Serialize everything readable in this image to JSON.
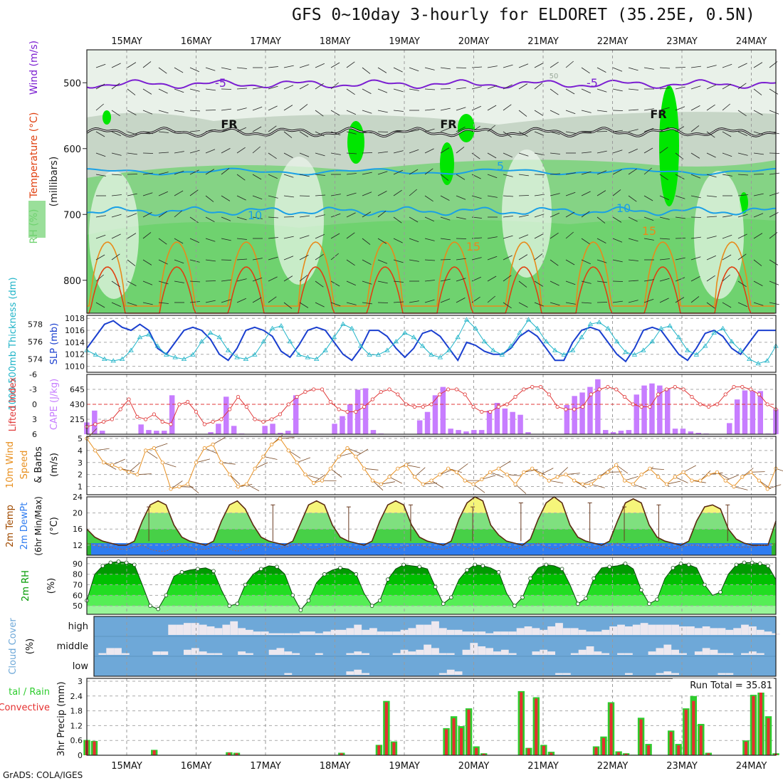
{
  "title": "GFS 0~10day 3-hourly for ELDORET (35.25E, 0.5N)",
  "credit": "GrADS: COLA/IGES",
  "colors": {
    "temp_line": "#7b1fd1",
    "freezing": "#111111",
    "cool_line": "#1aa0e6",
    "warm_line": "#e88a1a",
    "hot_line": "#e04010",
    "rh_light": "#eef6ee",
    "rh_mid": "#c7d6c7",
    "rh_green": "#6fd26f",
    "rh_bright": "#00e600",
    "slp": "#1a3fcf",
    "thickness": "#20b4c8",
    "cape": "#c77dff",
    "lifted": "#e03a3a",
    "wind": "#e89020",
    "barb": "#7a4a25",
    "temp_fill_warm": "#f5f57a",
    "temp_fill_green": "#47d047",
    "dewpt": "#2f7cf0",
    "rh_dark": "#009a00",
    "cloud_bg": "#6ea8d8",
    "cloud_bar": "#ede8ef",
    "rain": "#2ecc2e",
    "convective": "#e53030"
  },
  "chart_data": [
    {
      "panel": "upper_air",
      "type": "contour",
      "ylabel": "(millibars)",
      "legend_left": [
        "RH (%)",
        "Temperature (°C)",
        "Wind (m/s)"
      ],
      "yticks": [
        "500",
        "600",
        "700",
        "800"
      ],
      "ylim": [
        450,
        850
      ],
      "contour_labels": [
        "-5",
        "-5",
        "FR",
        "FR",
        "FR",
        "5",
        "10",
        "10",
        "15",
        "15",
        "50"
      ],
      "isotherms_mb": {
        "minus5": 502,
        "freezing": 575,
        "plus5": 635,
        "plus10": 695
      }
    },
    {
      "panel": "slp_thickness",
      "type": "line",
      "ylabel_left": "1000-500mb Thickness (dm)",
      "ylabel_right": "SLP (mb)",
      "left_ticks": [
        "578",
        "576",
        "574"
      ],
      "right_ticks": [
        "1018",
        "1016",
        "1014",
        "1012",
        "1010"
      ],
      "slp": [
        1013,
        1015,
        1017,
        1017.6,
        1016.5,
        1016,
        1017,
        1016,
        1013,
        1012,
        1014,
        1016,
        1016.5,
        1016,
        1014.5,
        1012,
        1011,
        1013,
        1016,
        1016.5,
        1016,
        1015,
        1012.5,
        1011.5,
        1013.5,
        1016,
        1016.5,
        1016,
        1014,
        1012,
        1011,
        1013,
        1016,
        1016,
        1015,
        1013,
        1011.5,
        1013,
        1015.5,
        1016,
        1015,
        1013,
        1011,
        1014,
        1013.5,
        1012.5,
        1012,
        1012,
        1013,
        1015,
        1016,
        1015,
        1013,
        1011,
        1011,
        1014,
        1016,
        1016.5,
        1016,
        1014,
        1012,
        1010.8,
        1013,
        1016,
        1016.5,
        1016,
        1014,
        1012,
        1011,
        1013,
        1015.5,
        1016,
        1015,
        1013,
        1012,
        1014,
        1016,
        1016,
        1016
      ],
      "thickness": [
        575,
        574.5,
        574,
        573.8,
        574,
        575,
        576.5,
        576.8,
        575.5,
        574.5,
        574.2,
        574,
        574.5,
        576,
        577,
        576.5,
        575,
        574.2,
        574,
        574.5,
        576,
        577.5,
        577.8,
        576,
        574.5,
        574.2,
        574,
        575,
        576.5,
        578,
        577.5,
        575.5,
        574.5,
        574.5,
        575,
        576,
        577,
        576.5,
        575.5,
        574.5,
        574.2,
        575,
        576.5,
        578.5,
        577.5,
        576,
        575,
        574.5,
        575.5,
        577,
        578.5,
        577.5,
        576,
        575,
        574.5,
        575,
        576.5,
        578,
        578.2,
        577.5,
        576,
        574.8,
        574.5,
        575,
        576,
        577.5,
        577.8,
        576.5,
        575,
        574.5,
        575.5,
        577,
        577.5,
        576,
        575,
        574,
        573.5,
        573.8,
        575.5
      ]
    },
    {
      "panel": "cape_li",
      "type": "bar",
      "ylabel_left": "Lifted Index",
      "ylabel_right": "CAPE (J/kg)",
      "left_ticks": [
        "-6",
        "-3",
        "0",
        "3",
        "6"
      ],
      "right_ticks": [
        "645",
        "430",
        "215"
      ],
      "cape": [
        170,
        340,
        50,
        0,
        0,
        0,
        0,
        140,
        60,
        50,
        50,
        560,
        0,
        0,
        0,
        0,
        30,
        150,
        540,
        120,
        10,
        0,
        0,
        120,
        150,
        20,
        50,
        560,
        0,
        0,
        0,
        0,
        150,
        260,
        430,
        640,
        660,
        60,
        10,
        0,
        0,
        0,
        0,
        200,
        320,
        560,
        680,
        80,
        60,
        40,
        60,
        60,
        340,
        450,
        370,
        320,
        280,
        30,
        0,
        0,
        0,
        0,
        420,
        550,
        600,
        680,
        790,
        60,
        30,
        50,
        60,
        570,
        700,
        730,
        700,
        660,
        80,
        80,
        40,
        20,
        10,
        0,
        0,
        160,
        500,
        630,
        620,
        620,
        10,
        360
      ],
      "lifted_index": [
        4.5,
        4,
        3.5,
        3,
        1,
        -1,
        2.5,
        3,
        2,
        3.5,
        4,
        0,
        -0.5,
        1.5,
        4,
        3.5,
        3,
        1,
        -1.5,
        0.5,
        3,
        3.5,
        3,
        2,
        0,
        -1.5,
        -2.5,
        -3,
        -3,
        -0.5,
        1,
        1.5,
        1.5,
        0.5,
        -1,
        -2.5,
        -3,
        -2,
        0,
        0.5,
        0.5,
        0,
        -2,
        -3,
        -3,
        -2,
        0.5,
        1.5,
        1.5,
        0.5,
        0,
        -1.5,
        -3,
        -3.5,
        -3.5,
        -2,
        0.5,
        1,
        1,
        0.5,
        -2,
        -3,
        -3.5,
        -3,
        -1.5,
        0,
        0.5,
        0.5,
        -2,
        -3,
        -3.5,
        -3,
        -1.5,
        0,
        0.5,
        0,
        -2,
        -3.5,
        -3.5,
        -3,
        -2,
        0,
        1
      ]
    },
    {
      "panel": "wind10m",
      "type": "line",
      "ylabel": "10m Wind Speed & Barbs (m/s)",
      "yticks": [
        "5",
        "4",
        "3",
        "2",
        "1"
      ],
      "ylim": [
        0.5,
        5
      ],
      "speed": [
        5,
        4,
        3,
        2.8,
        2.5,
        2.2,
        2,
        4,
        4.2,
        3,
        0.8,
        1,
        1.2,
        3,
        4.2,
        4.5,
        3,
        2,
        1,
        1.2,
        2.5,
        3.5,
        4.5,
        5,
        4,
        3,
        2,
        1.3,
        1.5,
        2.5,
        3.5,
        4.2,
        3.5,
        2.5,
        1.5,
        1.2,
        1.8,
        2.5,
        2.8,
        1.8,
        1.2,
        1.5,
        2,
        2.5,
        2.2,
        1.5,
        1.2,
        1.6,
        2.2,
        2.5,
        2,
        1.2,
        2.2,
        2.5,
        2,
        1.5,
        1.8,
        2,
        1.5,
        1.2,
        1.2,
        1.8,
        2.2,
        2.8,
        1.5,
        1.2,
        2,
        2.5,
        1.8,
        1.2,
        1.8,
        2.2,
        1.5,
        1.5,
        2,
        2.2,
        1.5,
        1,
        1.8,
        2.2,
        1.5,
        0.8,
        2.5
      ]
    },
    {
      "panel": "temp_dewpt",
      "type": "area",
      "ylabel": "2m Temp 2m DewPt (6hr Min/Max) (°C)",
      "yticks": [
        "24",
        "20",
        "16",
        "12"
      ],
      "ylim": [
        9.5,
        24
      ],
      "temp": [
        16,
        14,
        13,
        12.5,
        12,
        12,
        13,
        18,
        22,
        23,
        22,
        17,
        14,
        13,
        12.5,
        12,
        13,
        18,
        22,
        23,
        21,
        17,
        14,
        13,
        12.5,
        12,
        13,
        17.5,
        22,
        23,
        22,
        17,
        14,
        13,
        12.5,
        12,
        13,
        18,
        22,
        23,
        22,
        17,
        14,
        13,
        12.5,
        12,
        13,
        18.5,
        22.5,
        24,
        23,
        17,
        14.5,
        13,
        12.5,
        12,
        13.5,
        18.5,
        22.5,
        24,
        22.5,
        17,
        14,
        13,
        12.5,
        12,
        13,
        18,
        22.5,
        23.5,
        22.5,
        17,
        14,
        13,
        12.5,
        12,
        13,
        18,
        21.5,
        22,
        21,
        16,
        13.5,
        12.5,
        12,
        12,
        12,
        18
      ],
      "dewpt": [
        12.5,
        12,
        11.5,
        11.5,
        11,
        11,
        11.5,
        12,
        11,
        10.5,
        10.5,
        11.5,
        12,
        11.5,
        11,
        11,
        11.5,
        12,
        11,
        10.5,
        11,
        12,
        12,
        11.5,
        11,
        11.5,
        12,
        12.5,
        11,
        11,
        11.5,
        12,
        12,
        11.5,
        11,
        11,
        11.5,
        12,
        11.5,
        11,
        11.5,
        12,
        12,
        11.5,
        11,
        11,
        11.5,
        12.5,
        11.5,
        11,
        11.5,
        12.5,
        12,
        11.5,
        11,
        11.5,
        12,
        12.5,
        11.5,
        11,
        11.5,
        12.5,
        12,
        11.5,
        11,
        11.5,
        12,
        12.5,
        11.5,
        11,
        11.5,
        12,
        12,
        11.5,
        11,
        11.5,
        12,
        12,
        11.5,
        11.5,
        11.5,
        12,
        11.5,
        11.5,
        11.5,
        12,
        12,
        12.5
      ]
    },
    {
      "panel": "rh2m",
      "type": "area",
      "ylabel": "2m RH (%)",
      "yticks": [
        "90",
        "80",
        "70",
        "60",
        "50"
      ],
      "ylim": [
        42,
        96
      ],
      "rh": [
        55,
        80,
        88,
        91,
        92,
        91,
        89,
        70,
        50,
        47,
        60,
        78,
        82,
        84,
        85,
        86,
        83,
        65,
        50,
        52,
        70,
        80,
        85,
        88,
        87,
        80,
        60,
        46,
        55,
        72,
        80,
        84,
        86,
        85,
        80,
        62,
        50,
        55,
        75,
        85,
        89,
        88,
        87,
        85,
        68,
        52,
        58,
        75,
        84,
        89,
        88,
        86,
        82,
        62,
        50,
        58,
        76,
        86,
        89,
        88,
        85,
        70,
        52,
        57,
        76,
        86,
        87,
        88,
        90,
        85,
        65,
        52,
        56,
        76,
        86,
        90,
        89,
        86,
        70,
        60,
        63,
        80,
        89,
        91,
        91,
        90,
        88,
        75
      ]
    },
    {
      "panel": "cloud",
      "type": "bar",
      "ylabel": "Cloud Cover (%)",
      "levels": [
        "high",
        "middle",
        "low"
      ],
      "high": [
        0,
        0,
        0,
        0,
        0,
        0,
        0,
        0,
        0,
        0,
        0,
        60,
        60,
        70,
        70,
        60,
        50,
        40,
        60,
        80,
        40,
        30,
        20,
        20,
        10,
        10,
        10,
        10,
        20,
        20,
        10,
        20,
        30,
        30,
        40,
        60,
        30,
        40,
        20,
        20,
        20,
        30,
        40,
        60,
        60,
        80,
        40,
        30,
        30,
        20,
        20,
        20,
        10,
        20,
        20,
        20,
        40,
        50,
        40,
        30,
        50,
        70,
        40,
        40,
        30,
        20,
        20,
        30,
        50,
        60,
        50,
        60,
        70,
        60,
        60,
        60,
        60,
        50,
        50,
        40,
        50,
        40,
        40,
        30,
        40,
        60,
        50,
        30,
        20,
        10
      ],
      "middle": [
        0,
        0,
        10,
        40,
        40,
        10,
        0,
        0,
        0,
        20,
        20,
        0,
        0,
        30,
        40,
        20,
        10,
        10,
        0,
        0,
        20,
        10,
        0,
        0,
        30,
        40,
        20,
        10,
        0,
        0,
        10,
        0,
        0,
        0,
        10,
        20,
        10,
        0,
        0,
        0,
        10,
        30,
        20,
        30,
        60,
        40,
        10,
        10,
        0,
        30,
        70,
        50,
        40,
        20,
        30,
        10,
        0,
        0,
        20,
        30,
        20,
        0,
        0,
        10,
        30,
        50,
        20,
        10,
        0,
        10,
        10,
        0,
        0,
        20,
        40,
        60,
        30,
        10,
        0,
        20,
        40,
        30,
        10,
        10,
        0,
        10,
        20,
        10,
        0,
        0
      ],
      "low": [
        0,
        0,
        0,
        0,
        0,
        0,
        0,
        0,
        0,
        0,
        0,
        0,
        0,
        0,
        0,
        0,
        0,
        0,
        0,
        0,
        0,
        0,
        0,
        0,
        0,
        0,
        10,
        0,
        0,
        0,
        0,
        0,
        0,
        0,
        20,
        30,
        10,
        0,
        0,
        0,
        0,
        0,
        0,
        0,
        0,
        0,
        10,
        30,
        20,
        0,
        0,
        0,
        0,
        0,
        0,
        0,
        0,
        0,
        0,
        0,
        0,
        10,
        10,
        0,
        0,
        0,
        0,
        0,
        0,
        0,
        10,
        0,
        0,
        0,
        10,
        20,
        10,
        0,
        0,
        0,
        0,
        0,
        10,
        10,
        0,
        0,
        0,
        0,
        0,
        0
      ]
    },
    {
      "panel": "precip",
      "type": "bar",
      "ylabel_left": "Total / Rain / Convective",
      "ylabel": "3hr Precip (mm)",
      "yticks": [
        "3",
        "2.4",
        "1.8",
        "1.2",
        "0.6",
        "0"
      ],
      "ylim": [
        0,
        3
      ],
      "run_total": "Run Total =  35.81",
      "total": [
        0.62,
        0.58,
        0,
        0,
        0,
        0,
        0,
        0,
        0,
        0.22,
        0,
        0,
        0,
        0,
        0,
        0,
        0,
        0,
        0,
        0.12,
        0.1,
        0,
        0,
        0,
        0,
        0,
        0,
        0,
        0,
        0,
        0,
        0,
        0,
        0,
        0.1,
        0,
        0,
        0,
        0,
        0.42,
        2.2,
        0.56,
        0,
        0,
        0,
        0,
        0,
        0,
        1.1,
        1.58,
        1.18,
        1.9,
        0.36,
        0.08,
        0,
        0,
        0,
        0,
        2.6,
        0.3,
        2.35,
        0.42,
        0.14,
        0,
        0,
        0,
        0,
        0,
        0.36,
        0.76,
        2.15,
        0.16,
        0.08,
        0.02,
        1.52,
        0.46,
        0,
        0,
        1.0,
        0.46,
        1.9,
        2.4,
        1.27,
        0.1,
        0,
        0,
        0,
        0,
        0.6,
        2.45,
        2.9,
        1.58,
        0.08
      ],
      "convective": [
        0.6,
        0.56,
        0,
        0,
        0,
        0,
        0,
        0,
        0,
        0.2,
        0,
        0,
        0,
        0,
        0,
        0,
        0,
        0,
        0,
        0.1,
        0.08,
        0,
        0,
        0,
        0,
        0,
        0,
        0,
        0,
        0,
        0,
        0,
        0,
        0,
        0.08,
        0,
        0,
        0,
        0,
        0.4,
        2.15,
        0.52,
        0,
        0,
        0,
        0,
        0,
        0,
        1.05,
        1.5,
        1.1,
        1.85,
        0.3,
        0.06,
        0,
        0,
        0,
        0,
        2.55,
        0.28,
        2.3,
        0.38,
        0.1,
        0,
        0,
        0,
        0,
        0,
        0.32,
        0.7,
        2.1,
        0.12,
        0.06,
        0,
        1.45,
        0.4,
        0,
        0,
        0.95,
        0.4,
        1.85,
        2.2,
        1.2,
        0.08,
        0,
        0,
        0,
        0,
        0.55,
        2.4,
        2.85,
        1.5,
        0.06
      ]
    }
  ],
  "dates": [
    "15MAY",
    "16MAY",
    "17MAY",
    "18MAY",
    "19MAY",
    "20MAY",
    "21MAY",
    "22MAY",
    "23MAY",
    "24MAY"
  ]
}
